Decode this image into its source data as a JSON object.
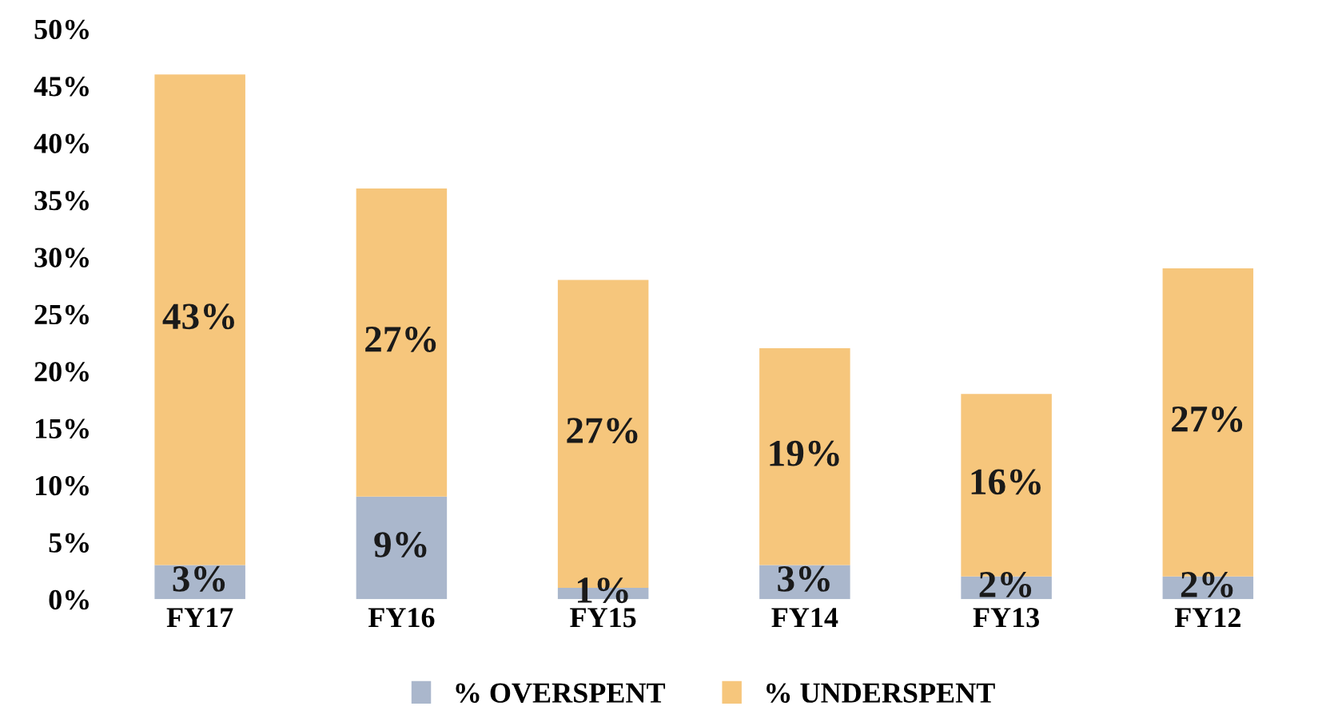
{
  "chart_data": {
    "type": "bar",
    "stacked": true,
    "categories": [
      "FY17",
      "FY16",
      "FY15",
      "FY14",
      "FY13",
      "FY12"
    ],
    "series": [
      {
        "name": "% OVERSPENT",
        "color": "#aab7cc",
        "values": [
          3,
          9,
          1,
          3,
          2,
          2
        ],
        "value_labels": [
          "3%",
          "9%",
          "1%",
          "3%",
          "2%",
          "2%"
        ]
      },
      {
        "name": "% UNDERSPENT",
        "color": "#f6c67c",
        "values": [
          43,
          27,
          27,
          19,
          16,
          27
        ],
        "value_labels": [
          "43%",
          "27%",
          "27%",
          "19%",
          "16%",
          "27%"
        ]
      }
    ],
    "ylim": [
      0,
      50
    ],
    "yticks": [
      {
        "value": 0,
        "label": "0%"
      },
      {
        "value": 5,
        "label": "5%"
      },
      {
        "value": 10,
        "label": "10%"
      },
      {
        "value": 15,
        "label": "15%"
      },
      {
        "value": 20,
        "label": "20%"
      },
      {
        "value": 25,
        "label": "25%"
      },
      {
        "value": 30,
        "label": "30%"
      },
      {
        "value": 35,
        "label": "35%"
      },
      {
        "value": 40,
        "label": "40%"
      },
      {
        "value": 45,
        "label": "45%"
      },
      {
        "value": 50,
        "label": "50%"
      }
    ],
    "grid": false,
    "legend": "bottom"
  }
}
